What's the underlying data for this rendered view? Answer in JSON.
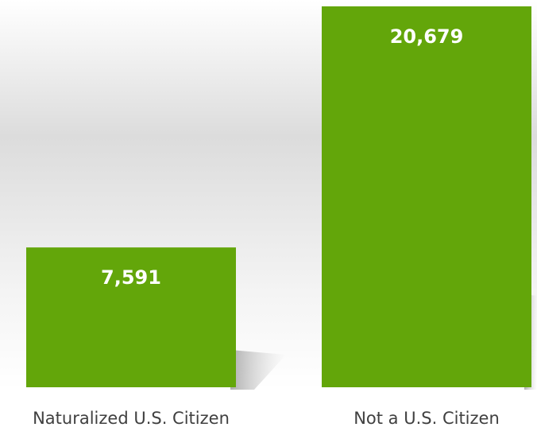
{
  "chart_data": {
    "type": "bar",
    "categories": [
      "Naturalized U.S. Citizen",
      "Not a U.S. Citizen"
    ],
    "values": [
      7591,
      20679
    ],
    "value_labels": [
      "7,591",
      "20,679"
    ],
    "color": "#63a60a"
  }
}
